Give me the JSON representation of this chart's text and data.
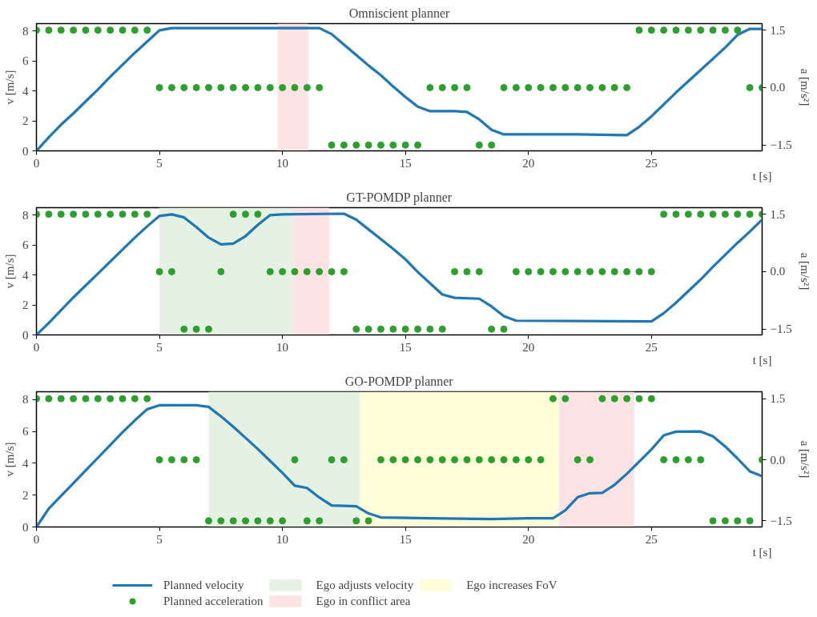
{
  "chart_data": [
    {
      "type": "line",
      "title": "Omniscient planner",
      "xlabel": "t [s]",
      "ylabel": "v [m/s]",
      "y2label": "a [m/s²]",
      "xlim": [
        0,
        29.5
      ],
      "xticks": [
        0,
        5,
        10,
        15,
        20,
        25
      ],
      "ylim": [
        0,
        8.5
      ],
      "yticks": [
        0,
        2,
        4,
        6,
        8
      ],
      "y2lim": [
        -1.65,
        1.67
      ],
      "y2ticks": [
        {
          "value": -1.5,
          "label": "−1.5"
        },
        {
          "value": 0,
          "label": "0.0"
        },
        {
          "value": 1.5,
          "label": "1.5"
        }
      ],
      "grid": false,
      "legend": false,
      "bands": [
        {
          "axis": "x",
          "from": 9.8,
          "to": 11.05,
          "color": "#fde3e4"
        }
      ],
      "series": [
        {
          "color": "#1f77b4",
          "x": [
            0,
            0.5,
            1,
            1.5,
            2,
            2.5,
            3,
            3.5,
            4,
            4.5,
            5,
            5.5,
            11.5,
            12,
            12.5,
            13,
            13.5,
            14,
            14.5,
            15,
            15.5,
            16,
            17,
            17.5,
            18,
            18.5,
            19,
            20,
            22,
            24,
            24.5,
            25,
            26,
            27,
            28,
            28.5,
            29,
            29.5
          ],
          "values": [
            0,
            0.9,
            1.75,
            2.5,
            3.3,
            4.1,
            4.95,
            5.75,
            6.55,
            7.3,
            8.05,
            8.2,
            8.2,
            7.8,
            7.1,
            6.4,
            5.7,
            5.05,
            4.3,
            3.6,
            2.95,
            2.65,
            2.65,
            2.6,
            2.1,
            1.4,
            1.1,
            1.1,
            1.1,
            1.05,
            1.6,
            2.3,
            3.9,
            5.4,
            6.9,
            7.75,
            8.15,
            8.15
          ]
        },
        {
          "type": "scatter",
          "axis": "y2",
          "color": "#2ca02c",
          "x": [
            0,
            0.5,
            1,
            1.5,
            2,
            2.5,
            3,
            3.5,
            4,
            4.5,
            5,
            5.5,
            6,
            6.5,
            7,
            7.5,
            8,
            8.5,
            9,
            9.5,
            10,
            10.5,
            11,
            11.5,
            12,
            12.5,
            13,
            13.5,
            14,
            14.5,
            15,
            15.5,
            16,
            16.5,
            17,
            17.5,
            18,
            18.5,
            19,
            19.5,
            20,
            20.5,
            21,
            21.5,
            22,
            22.5,
            23,
            23.5,
            24,
            24.5,
            25,
            25.5,
            26,
            26.5,
            27,
            27.5,
            28,
            28.5,
            29,
            29.5
          ],
          "values": [
            1.5,
            1.5,
            1.5,
            1.5,
            1.5,
            1.5,
            1.5,
            1.5,
            1.5,
            1.5,
            0,
            0,
            0,
            0,
            0,
            0,
            0,
            0,
            0,
            0,
            0,
            0,
            0,
            0,
            -1.5,
            -1.5,
            -1.5,
            -1.5,
            -1.5,
            -1.5,
            -1.5,
            -1.5,
            0,
            0,
            0,
            0,
            -1.5,
            -1.5,
            0,
            0,
            0,
            0,
            0,
            0,
            0,
            0,
            0,
            0,
            0,
            1.5,
            1.5,
            1.5,
            1.5,
            1.5,
            1.5,
            1.5,
            1.5,
            1.5,
            0,
            0
          ]
        }
      ]
    },
    {
      "type": "line",
      "title": "GT-POMDP planner",
      "xlabel": "t [s]",
      "ylabel": "v [m/s]",
      "y2label": "a [m/s²]",
      "xlim": [
        0,
        29.5
      ],
      "xticks": [
        0,
        5,
        10,
        15,
        20,
        25
      ],
      "ylim": [
        0,
        8.5
      ],
      "yticks": [
        0,
        2,
        4,
        6,
        8
      ],
      "y2lim": [
        -1.65,
        1.67
      ],
      "y2ticks": [
        {
          "value": -1.5,
          "label": "−1.5"
        },
        {
          "value": 0,
          "label": "0.0"
        },
        {
          "value": 1.5,
          "label": "1.5"
        }
      ],
      "grid": false,
      "legend": false,
      "bands": [
        {
          "axis": "x",
          "from": 5,
          "to": 10.45,
          "color": "#e5f1e3"
        },
        {
          "axis": "x",
          "from": 10.45,
          "to": 11.9,
          "color": "#fde3e4"
        }
      ],
      "series": [
        {
          "color": "#1f77b4",
          "x": [
            0,
            0.5,
            1,
            1.5,
            2,
            2.5,
            3,
            3.5,
            4,
            4.5,
            5,
            5.5,
            6,
            6.5,
            7,
            7.5,
            8,
            8.5,
            9,
            9.5,
            10,
            12.5,
            13,
            13.5,
            14,
            14.5,
            15,
            15.5,
            16,
            16.5,
            17,
            18,
            18.5,
            19,
            19.5,
            25,
            25.5,
            26,
            27,
            27.5,
            28,
            28.5,
            29,
            29.5
          ],
          "values": [
            0,
            0.8,
            1.65,
            2.5,
            3.3,
            4.1,
            4.9,
            5.7,
            6.5,
            7.25,
            7.95,
            8.05,
            7.85,
            7.2,
            6.5,
            6.05,
            6.1,
            6.6,
            7.35,
            8.0,
            8.05,
            8.1,
            7.7,
            7.05,
            6.4,
            5.75,
            5.05,
            4.2,
            3.45,
            2.7,
            2.48,
            2.42,
            1.9,
            1.25,
            0.95,
            0.9,
            1.45,
            2.15,
            3.7,
            4.55,
            5.35,
            6.15,
            6.9,
            7.7
          ]
        },
        {
          "type": "scatter",
          "axis": "y2",
          "color": "#2ca02c",
          "x": [
            0,
            0.5,
            1,
            1.5,
            2,
            2.5,
            3,
            3.5,
            4,
            4.5,
            5,
            5.5,
            6,
            6.5,
            7,
            7.5,
            8,
            8.5,
            9,
            9.5,
            10,
            10.5,
            11,
            11.5,
            12,
            12.5,
            13,
            13.5,
            14,
            14.5,
            15,
            15.5,
            16,
            16.5,
            17,
            17.5,
            18,
            18.5,
            19,
            19.5,
            20,
            20.5,
            21,
            21.5,
            22,
            22.5,
            23,
            23.5,
            24,
            24.5,
            25,
            25.5,
            26,
            26.5,
            27,
            27.5,
            28,
            28.5,
            29,
            29.5
          ],
          "values": [
            1.5,
            1.5,
            1.5,
            1.5,
            1.5,
            1.5,
            1.5,
            1.5,
            1.5,
            1.5,
            0,
            0,
            -1.5,
            -1.5,
            -1.5,
            0,
            1.5,
            1.5,
            1.5,
            0,
            0,
            0,
            0,
            0,
            0,
            0,
            -1.5,
            -1.5,
            -1.5,
            -1.5,
            -1.5,
            -1.5,
            -1.5,
            -1.5,
            0,
            0,
            0,
            -1.5,
            -1.5,
            0,
            0,
            0,
            0,
            0,
            0,
            0,
            0,
            0,
            0,
            0,
            0,
            1.5,
            1.5,
            1.5,
            1.5,
            1.5,
            1.5,
            1.5,
            1.5,
            1.5
          ]
        }
      ]
    },
    {
      "type": "line",
      "title": "GO-POMDP planner",
      "xlabel": "t [s]",
      "ylabel": "v [m/s]",
      "y2label": "a [m/s²]",
      "xlim": [
        0,
        29.5
      ],
      "xticks": [
        0,
        5,
        10,
        15,
        20,
        25
      ],
      "ylim": [
        0,
        8.5
      ],
      "yticks": [
        0,
        2,
        4,
        6,
        8
      ],
      "y2lim": [
        -1.65,
        1.67
      ],
      "y2ticks": [
        {
          "value": -1.5,
          "label": "−1.5"
        },
        {
          "value": 0,
          "label": "0.0"
        },
        {
          "value": 1.5,
          "label": "1.5"
        }
      ],
      "grid": false,
      "legend": "bottom",
      "bands": [
        {
          "axis": "x",
          "from": 7,
          "to": 13.15,
          "color": "#e5f1e3",
          "label": "Ego adjusts velocity"
        },
        {
          "axis": "x",
          "from": 21.25,
          "to": 24.3,
          "color": "#fde3e4",
          "label": "Ego in conflict area"
        },
        {
          "axis": "x",
          "from": 13.15,
          "to": 21.25,
          "color": "#fefed8",
          "label": "Ego increases FoV"
        }
      ],
      "series": [
        {
          "name": "Planned velocity",
          "color": "#1f77b4",
          "x": [
            0,
            0.5,
            1,
            1.5,
            2,
            2.5,
            3,
            3.5,
            4,
            4.5,
            5,
            6.5,
            7,
            7.5,
            8,
            8.5,
            9,
            9.5,
            10,
            10.5,
            11,
            11.5,
            12,
            13,
            13.5,
            14,
            16,
            18.5,
            20,
            21,
            21.5,
            22,
            22.5,
            23,
            23.5,
            24,
            25,
            25.5,
            26,
            27,
            27.5,
            28,
            28.5,
            29,
            29.5
          ],
          "values": [
            0,
            1.15,
            1.95,
            2.75,
            3.55,
            4.35,
            5.15,
            5.95,
            6.7,
            7.4,
            7.65,
            7.65,
            7.55,
            6.95,
            6.3,
            5.6,
            4.9,
            4.15,
            3.4,
            2.6,
            2.45,
            1.85,
            1.35,
            1.3,
            0.85,
            0.6,
            0.55,
            0.5,
            0.55,
            0.55,
            1.05,
            1.87,
            2.12,
            2.14,
            2.65,
            3.34,
            4.87,
            5.76,
            5.99,
            6.0,
            5.7,
            5.06,
            4.3,
            3.5,
            3.19
          ]
        },
        {
          "type": "scatter",
          "axis": "y2",
          "name": "Planned acceleration",
          "color": "#2ca02c",
          "x": [
            0,
            0.5,
            1,
            1.5,
            2,
            2.5,
            3,
            3.5,
            4,
            4.5,
            5,
            5.5,
            6,
            6.5,
            7,
            7.5,
            8,
            8.5,
            9,
            9.5,
            10,
            10.5,
            11,
            11.5,
            12,
            12.5,
            13,
            13.5,
            14,
            14.5,
            15,
            15.5,
            16,
            16.5,
            17,
            17.5,
            18,
            18.5,
            19,
            19.5,
            20,
            20.5,
            21,
            21.5,
            22,
            22.5,
            23,
            23.5,
            24,
            24.5,
            25,
            25.5,
            26,
            26.5,
            27,
            27.5,
            28,
            28.5,
            29,
            29.5
          ],
          "values": [
            1.5,
            1.5,
            1.5,
            1.5,
            1.5,
            1.5,
            1.5,
            1.5,
            1.5,
            1.5,
            0,
            0,
            0,
            0,
            -1.5,
            -1.5,
            -1.5,
            -1.5,
            -1.5,
            -1.5,
            -1.5,
            0,
            -1.5,
            -1.5,
            0,
            0,
            -1.5,
            -1.5,
            0,
            0,
            0,
            0,
            0,
            0,
            0,
            0,
            0,
            0,
            0,
            0,
            0,
            0,
            1.5,
            1.5,
            0,
            0,
            1.5,
            1.5,
            1.5,
            1.5,
            1.5,
            0,
            0,
            0,
            0,
            -1.5,
            -1.5,
            -1.5,
            -1.5,
            0
          ]
        }
      ]
    }
  ]
}
